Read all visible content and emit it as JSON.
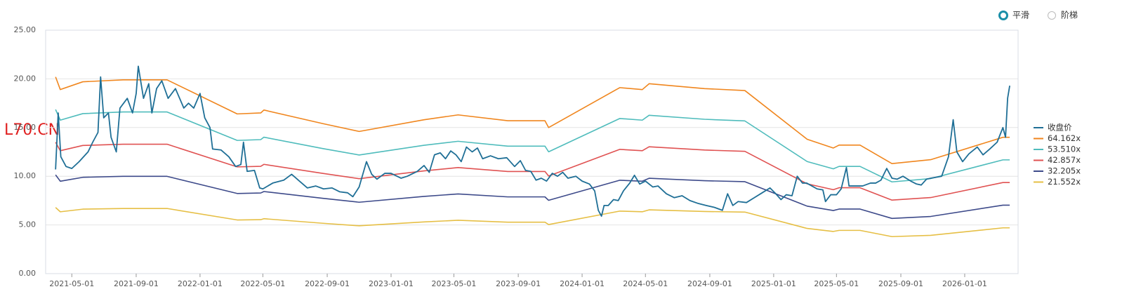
{
  "chart_data": {
    "type": "line",
    "watermark": "L70.CN",
    "controls": {
      "options": [
        "平滑",
        "阶梯"
      ],
      "selected": 0
    },
    "xlim": [
      "2021-03-12",
      "2026-04-13"
    ],
    "xticks": [
      "2021-05-01",
      "2021-09-01",
      "2022-01-01",
      "2022-05-01",
      "2022-09-01",
      "2023-01-01",
      "2023-05-01",
      "2023-09-01",
      "2024-01-01",
      "2024-05-01",
      "2024-09-01",
      "2025-01-01",
      "2025-05-01",
      "2025-09-01",
      "2026-01-01"
    ],
    "ylim": [
      0,
      25
    ],
    "yticks": [
      {
        "value": 0,
        "label": "0.00"
      },
      {
        "value": 5,
        "label": "5.00"
      },
      {
        "value": 10,
        "label": "10.00"
      },
      {
        "value": 15,
        "label": "15.00"
      },
      {
        "value": 20,
        "label": "20.00"
      },
      {
        "value": 25,
        "label": "25.00"
      }
    ],
    "grid": true,
    "legend": "right",
    "series": [
      {
        "name": "收盘价",
        "color": "#1f6f96",
        "x": [
          "2021-03-31",
          "2021-04-05",
          "2021-04-10",
          "2021-04-20",
          "2021-05-01",
          "2021-05-15",
          "2021-06-01",
          "2021-06-10",
          "2021-06-20",
          "2021-06-25",
          "2021-07-01",
          "2021-07-10",
          "2021-07-15",
          "2021-07-25",
          "2021-08-01",
          "2021-08-15",
          "2021-08-25",
          "2021-09-01",
          "2021-09-05",
          "2021-09-15",
          "2021-09-25",
          "2021-10-01",
          "2021-10-10",
          "2021-10-20",
          "2021-11-01",
          "2021-11-15",
          "2021-12-01",
          "2021-12-10",
          "2021-12-20",
          "2022-01-01",
          "2022-01-10",
          "2022-01-20",
          "2022-01-25",
          "2022-02-10",
          "2022-02-25",
          "2022-03-10",
          "2022-03-20",
          "2022-03-25",
          "2022-04-01",
          "2022-04-15",
          "2022-04-25",
          "2022-05-01",
          "2022-05-20",
          "2022-06-10",
          "2022-06-25",
          "2022-07-10",
          "2022-07-25",
          "2022-08-10",
          "2022-08-25",
          "2022-09-10",
          "2022-09-25",
          "2022-10-10",
          "2022-10-20",
          "2022-11-01",
          "2022-11-15",
          "2022-11-25",
          "2022-12-05",
          "2022-12-20",
          "2023-01-01",
          "2023-01-20",
          "2023-02-01",
          "2023-02-20",
          "2023-03-05",
          "2023-03-15",
          "2023-03-25",
          "2023-04-05",
          "2023-04-15",
          "2023-04-25",
          "2023-05-05",
          "2023-05-15",
          "2023-05-25",
          "2023-06-05",
          "2023-06-15",
          "2023-06-25",
          "2023-07-10",
          "2023-07-25",
          "2023-08-10",
          "2023-08-25",
          "2023-09-05",
          "2023-09-15",
          "2023-09-25",
          "2023-10-05",
          "2023-10-15",
          "2023-10-25",
          "2023-11-05",
          "2023-11-15",
          "2023-11-25",
          "2023-12-05",
          "2023-12-20",
          "2024-01-01",
          "2024-01-15",
          "2024-01-25",
          "2024-02-01",
          "2024-02-07",
          "2024-02-12",
          "2024-02-20",
          "2024-03-01",
          "2024-03-10",
          "2024-03-20",
          "2024-04-01",
          "2024-04-10",
          "2024-04-20",
          "2024-05-01",
          "2024-05-15",
          "2024-05-25",
          "2024-06-10",
          "2024-06-25",
          "2024-07-10",
          "2024-07-25",
          "2024-08-10",
          "2024-08-25",
          "2024-09-10",
          "2024-09-25",
          "2024-10-05",
          "2024-10-15",
          "2024-10-25",
          "2024-11-10",
          "2024-11-25",
          "2024-12-10",
          "2024-12-25",
          "2025-01-05",
          "2025-01-15",
          "2025-01-25",
          "2025-02-05",
          "2025-02-15",
          "2025-02-25",
          "2025-03-05",
          "2025-03-15",
          "2025-03-25",
          "2025-04-05",
          "2025-04-10",
          "2025-04-20",
          "2025-05-01",
          "2025-05-10",
          "2025-05-20",
          "2025-05-25",
          "2025-06-05",
          "2025-06-20",
          "2025-07-05",
          "2025-07-15",
          "2025-07-25",
          "2025-08-05",
          "2025-08-15",
          "2025-08-25",
          "2025-09-05",
          "2025-09-20",
          "2025-10-01",
          "2025-10-10",
          "2025-10-20",
          "2025-10-28",
          "2025-11-18",
          "2025-12-01",
          "2025-12-10",
          "2025-12-17",
          "2025-12-28",
          "2026-01-09",
          "2026-01-25",
          "2026-02-05",
          "2026-02-18",
          "2026-03-04",
          "2026-03-15",
          "2026-03-20",
          "2026-03-24",
          "2026-03-28"
        ],
        "values": [
          10.7,
          16.5,
          12,
          11.0,
          10.8,
          11.5,
          12.5,
          13.5,
          14.5,
          20.2,
          16,
          16.5,
          14,
          12.5,
          17,
          18,
          16.5,
          18.5,
          21.3,
          18,
          19.5,
          16.5,
          19,
          19.8,
          18,
          19,
          17,
          17.5,
          17,
          18.5,
          16,
          15,
          12.8,
          12.7,
          12,
          11,
          11.2,
          13.5,
          10.5,
          10.6,
          8.8,
          8.7,
          9.3,
          9.6,
          10.2,
          9.5,
          8.8,
          9.0,
          8.7,
          8.8,
          8.4,
          8.3,
          7.9,
          8.9,
          11.5,
          10.2,
          9.7,
          10.3,
          10.3,
          9.8,
          10.0,
          10.5,
          11.1,
          10.4,
          12.2,
          12.4,
          11.8,
          12.6,
          12.2,
          11.5,
          13.0,
          12.5,
          12.9,
          11.8,
          12.1,
          11.8,
          11.9,
          11.0,
          11.6,
          10.6,
          10.5,
          9.6,
          9.8,
          9.5,
          10.3,
          10.0,
          10.4,
          9.8,
          10.0,
          9.5,
          9.2,
          8.5,
          6.5,
          5.9,
          7.0,
          7.0,
          7.6,
          7.5,
          8.5,
          9.3,
          10.1,
          9.2,
          9.5,
          8.9,
          9.0,
          8.2,
          7.8,
          8.0,
          7.5,
          7.2,
          7.0,
          6.8,
          6.5,
          8.2,
          7.0,
          7.4,
          7.3,
          7.8,
          8.3,
          8.8,
          8.2,
          7.6,
          8.1,
          8.0,
          10.0,
          9.3,
          9.3,
          9.0,
          8.7,
          8.6,
          7.4,
          8.1,
          8.1,
          8.7,
          10.9,
          9.0,
          9.0,
          9.0,
          9.3,
          9.3,
          9.6,
          10.8,
          9.8,
          9.7,
          10.0,
          9.5,
          9.2,
          9.1,
          9.7,
          9.8,
          10.0,
          12.0,
          15.8,
          12.5,
          11.5,
          12.3,
          13.0,
          12.2,
          12.8,
          13.5,
          15.0,
          14.0,
          18.0,
          19.3
        ]
      },
      {
        "name": "64.162x",
        "color": "#f0861e",
        "x": [
          "2021-03-31",
          "2021-04-09",
          "2021-05-22",
          "2021-08-07",
          "2021-10-30",
          "2022-03-13",
          "2022-04-27",
          "2022-05-03",
          "2022-08-24",
          "2022-11-01",
          "2023-03-05",
          "2023-05-09",
          "2023-08-12",
          "2023-10-22",
          "2023-10-29",
          "2024-03-13",
          "2024-04-25",
          "2024-05-08",
          "2024-08-22",
          "2024-11-07",
          "2025-03-06",
          "2025-04-25",
          "2025-05-06",
          "2025-06-15",
          "2025-08-15",
          "2025-10-28",
          "2026-03-15",
          "2026-03-28"
        ],
        "values": [
          20.2,
          18.9,
          19.7,
          19.9,
          19.9,
          16.4,
          16.5,
          16.8,
          15.4,
          14.6,
          15.8,
          16.3,
          15.7,
          15.7,
          15.0,
          19.1,
          18.9,
          19.5,
          19.0,
          18.8,
          13.8,
          12.9,
          13.2,
          13.2,
          11.3,
          11.7,
          14.0,
          14.0
        ]
      },
      {
        "name": "53.510x",
        "color": "#4fbcbc",
        "x": [
          "2021-03-31",
          "2021-04-09",
          "2021-05-22",
          "2021-08-07",
          "2021-10-30",
          "2022-03-13",
          "2022-04-27",
          "2022-05-03",
          "2022-08-24",
          "2022-11-01",
          "2023-03-05",
          "2023-05-09",
          "2023-08-12",
          "2023-10-22",
          "2023-10-29",
          "2024-03-13",
          "2024-04-25",
          "2024-05-08",
          "2024-08-22",
          "2024-11-07",
          "2025-03-06",
          "2025-04-25",
          "2025-05-06",
          "2025-06-15",
          "2025-08-15",
          "2025-10-28",
          "2026-03-15",
          "2026-03-28"
        ],
        "values": [
          16.85,
          15.76,
          16.43,
          16.6,
          16.6,
          13.68,
          13.76,
          14.01,
          12.84,
          12.18,
          13.18,
          13.59,
          13.09,
          13.09,
          12.51,
          15.93,
          15.76,
          16.26,
          15.85,
          15.68,
          11.51,
          10.76,
          11.01,
          11.01,
          9.42,
          9.76,
          11.68,
          11.68
        ]
      },
      {
        "name": "42.857x",
        "color": "#e05252",
        "x": [
          "2021-03-31",
          "2021-04-09",
          "2021-05-22",
          "2021-08-07",
          "2021-10-30",
          "2022-03-13",
          "2022-04-27",
          "2022-05-03",
          "2022-08-24",
          "2022-11-01",
          "2023-03-05",
          "2023-05-09",
          "2023-08-12",
          "2023-10-22",
          "2023-10-29",
          "2024-03-13",
          "2024-04-25",
          "2024-05-08",
          "2024-08-22",
          "2024-11-07",
          "2025-03-06",
          "2025-04-25",
          "2025-05-06",
          "2025-06-15",
          "2025-08-15",
          "2025-10-28",
          "2026-03-15",
          "2026-03-28"
        ],
        "values": [
          13.49,
          12.62,
          13.16,
          13.29,
          13.29,
          10.96,
          11.02,
          11.22,
          10.29,
          9.75,
          10.55,
          10.89,
          10.49,
          10.49,
          10.02,
          12.76,
          12.62,
          13.03,
          12.69,
          12.56,
          9.22,
          8.62,
          8.82,
          8.82,
          7.55,
          7.81,
          9.35,
          9.35
        ]
      },
      {
        "name": "32.205x",
        "color": "#3d4a8a",
        "x": [
          "2021-03-31",
          "2021-04-09",
          "2021-05-22",
          "2021-08-07",
          "2021-10-30",
          "2022-03-13",
          "2022-04-27",
          "2022-05-03",
          "2022-08-24",
          "2022-11-01",
          "2023-03-05",
          "2023-05-09",
          "2023-08-12",
          "2023-10-22",
          "2023-10-29",
          "2024-03-13",
          "2024-04-25",
          "2024-05-08",
          "2024-08-22",
          "2024-11-07",
          "2025-03-06",
          "2025-04-25",
          "2025-05-06",
          "2025-06-15",
          "2025-08-15",
          "2025-10-28",
          "2026-03-15",
          "2026-03-28"
        ],
        "values": [
          10.14,
          9.49,
          9.89,
          9.99,
          9.99,
          8.23,
          8.28,
          8.43,
          7.73,
          7.33,
          7.93,
          8.18,
          7.88,
          7.88,
          7.53,
          9.59,
          9.49,
          9.79,
          9.54,
          9.44,
          6.93,
          6.48,
          6.63,
          6.63,
          5.67,
          5.87,
          7.03,
          7.03
        ]
      },
      {
        "name": "21.552x",
        "color": "#e6bf45",
        "x": [
          "2021-03-31",
          "2021-04-09",
          "2021-05-22",
          "2021-08-07",
          "2021-10-30",
          "2022-03-13",
          "2022-04-27",
          "2022-05-03",
          "2022-08-24",
          "2022-11-01",
          "2023-03-05",
          "2023-05-09",
          "2023-08-12",
          "2023-10-22",
          "2023-10-29",
          "2024-03-13",
          "2024-04-25",
          "2024-05-08",
          "2024-08-22",
          "2024-11-07",
          "2025-03-06",
          "2025-04-25",
          "2025-05-06",
          "2025-06-15",
          "2025-08-15",
          "2025-10-28",
          "2026-03-15",
          "2026-03-28"
        ],
        "values": [
          6.79,
          6.35,
          6.62,
          6.69,
          6.69,
          5.51,
          5.54,
          5.64,
          5.17,
          4.91,
          5.31,
          5.48,
          5.28,
          5.28,
          5.04,
          6.42,
          6.35,
          6.55,
          6.38,
          6.32,
          4.64,
          4.33,
          4.44,
          4.44,
          3.8,
          3.93,
          4.7,
          4.7
        ]
      }
    ]
  }
}
